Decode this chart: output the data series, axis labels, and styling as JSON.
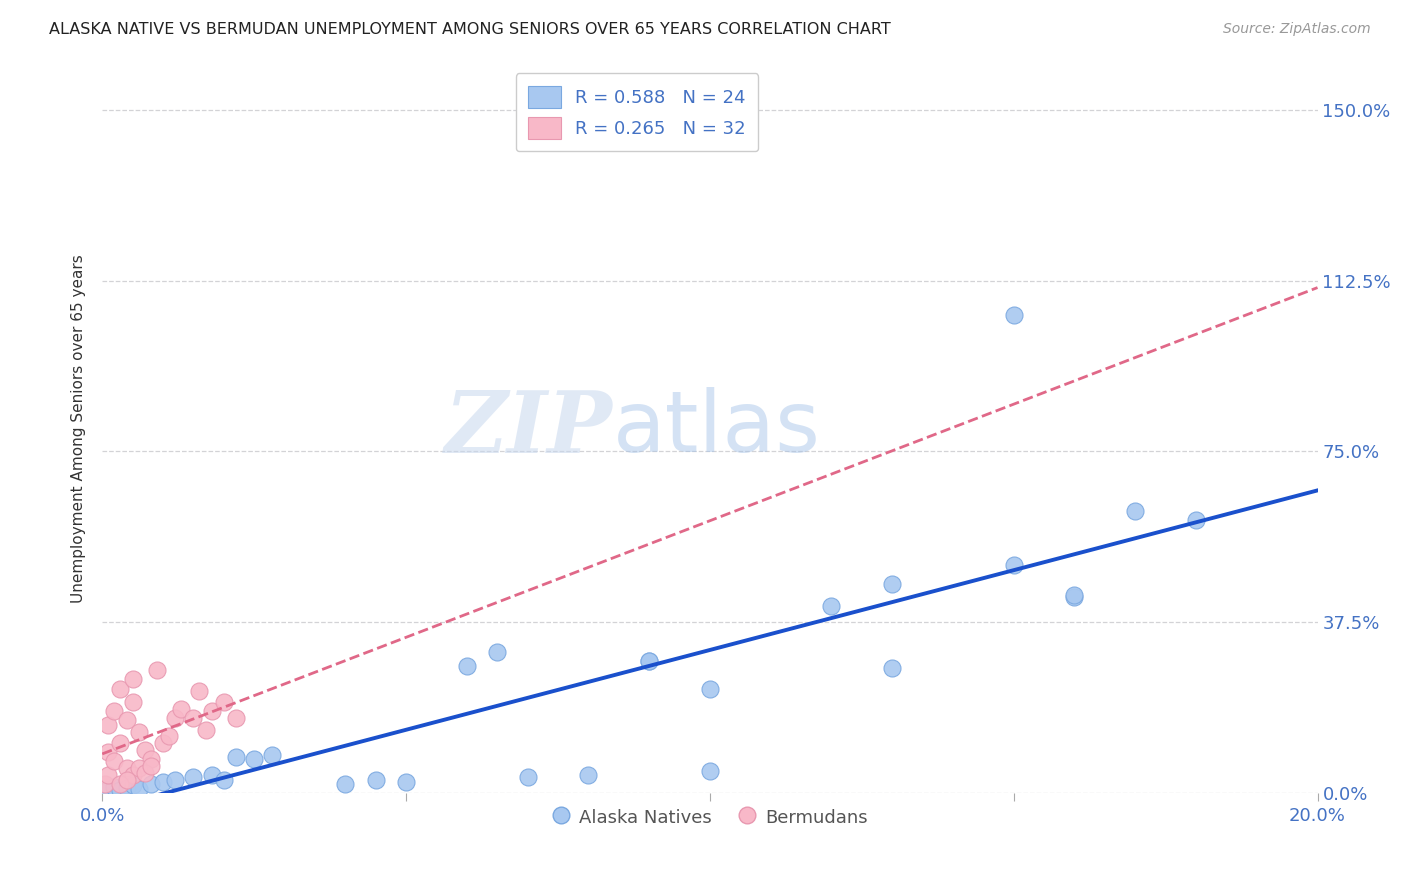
{
  "title": "ALASKA NATIVE VS BERMUDAN UNEMPLOYMENT AMONG SENIORS OVER 65 YEARS CORRELATION CHART",
  "source": "Source: ZipAtlas.com",
  "label_color": "#4472c4",
  "ylabel": "Unemployment Among Seniors over 65 years",
  "xlim": [
    0.0,
    0.2
  ],
  "ylim": [
    0.0,
    1.6
  ],
  "xticks": [
    0.0,
    0.05,
    0.1,
    0.15,
    0.2
  ],
  "ytick_labels_right": [
    "0.0%",
    "37.5%",
    "75.0%",
    "112.5%",
    "150.0%"
  ],
  "ytick_vals_right": [
    0.0,
    0.375,
    0.75,
    1.125,
    1.5
  ],
  "alaska_color": "#a8c8f0",
  "bermuda_color": "#f8b8c8",
  "alaska_edge_color": "#7aa8e0",
  "bermuda_edge_color": "#e898b0",
  "alaska_line_color": "#1a50cc",
  "bermuda_line_color": "#e06888",
  "watermark_zip": "ZIP",
  "watermark_atlas": "atlas",
  "background_color": "#ffffff",
  "grid_color": "#c8c8cc",
  "alaska_x": [
    0.001,
    0.002,
    0.003,
    0.004,
    0.005,
    0.006,
    0.008,
    0.01,
    0.012,
    0.015,
    0.018,
    0.02,
    0.022,
    0.025,
    0.028,
    0.04,
    0.045,
    0.05,
    0.06,
    0.065,
    0.07,
    0.08,
    0.09,
    0.1,
    0.12,
    0.13,
    0.15,
    0.16,
    0.17,
    0.18,
    0.15,
    0.16,
    0.09,
    0.1,
    0.13
  ],
  "alaska_y": [
    0.01,
    0.015,
    0.008,
    0.012,
    0.018,
    0.01,
    0.02,
    0.025,
    0.03,
    0.035,
    0.04,
    0.03,
    0.08,
    0.075,
    0.085,
    0.02,
    0.03,
    0.025,
    0.28,
    0.31,
    0.035,
    0.04,
    0.29,
    0.05,
    0.41,
    0.46,
    0.5,
    0.43,
    0.62,
    0.6,
    1.05,
    0.435,
    0.29,
    0.23,
    0.275
  ],
  "bermuda_x": [
    0.0005,
    0.001,
    0.001,
    0.001,
    0.002,
    0.002,
    0.003,
    0.003,
    0.004,
    0.004,
    0.005,
    0.005,
    0.006,
    0.007,
    0.008,
    0.009,
    0.01,
    0.011,
    0.012,
    0.013,
    0.015,
    0.016,
    0.017,
    0.018,
    0.02,
    0.022,
    0.005,
    0.006,
    0.007,
    0.008,
    0.003,
    0.004
  ],
  "bermuda_y": [
    0.02,
    0.04,
    0.09,
    0.15,
    0.07,
    0.18,
    0.11,
    0.23,
    0.055,
    0.16,
    0.25,
    0.2,
    0.135,
    0.095,
    0.075,
    0.27,
    0.11,
    0.125,
    0.165,
    0.185,
    0.165,
    0.225,
    0.14,
    0.18,
    0.2,
    0.165,
    0.04,
    0.055,
    0.045,
    0.06,
    0.02,
    0.03
  ]
}
